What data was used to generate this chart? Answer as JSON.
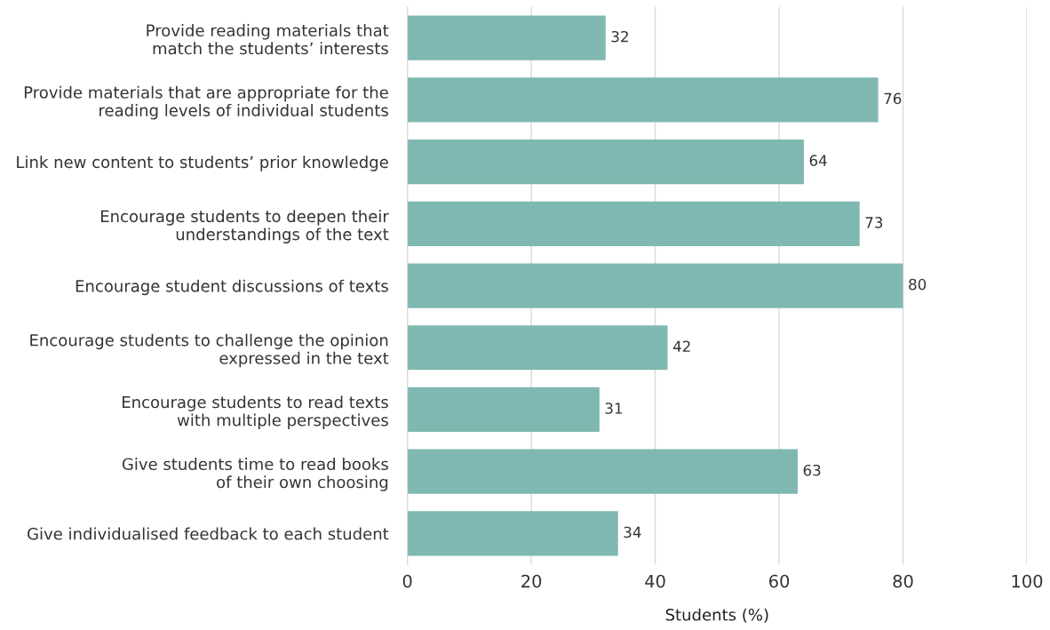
{
  "chart_data": {
    "type": "bar",
    "orientation": "horizontal",
    "xlabel": "Students (%)",
    "categories": [
      "Provide reading materials that\nmatch the students’ interests",
      "Provide materials that are appropriate for the\nreading levels of individual students",
      "Link new content to students’ prior knowledge",
      "Encourage students to deepen their\nunderstandings of the text",
      "Encourage student discussions of texts",
      "Encourage students to challenge the opinion\nexpressed in the text",
      "Encourage students to read texts\nwith multiple perspectives",
      "Give students time to read books\nof their own choosing",
      "Give individualised feedback to each student"
    ],
    "values": [
      32,
      76,
      64,
      73,
      80,
      42,
      31,
      63,
      34
    ],
    "color": "#7fb8b0",
    "data_labels": true,
    "xlim": [
      0,
      100
    ],
    "xticks": [
      0,
      20,
      40,
      60,
      80,
      100
    ],
    "grid": "x"
  }
}
